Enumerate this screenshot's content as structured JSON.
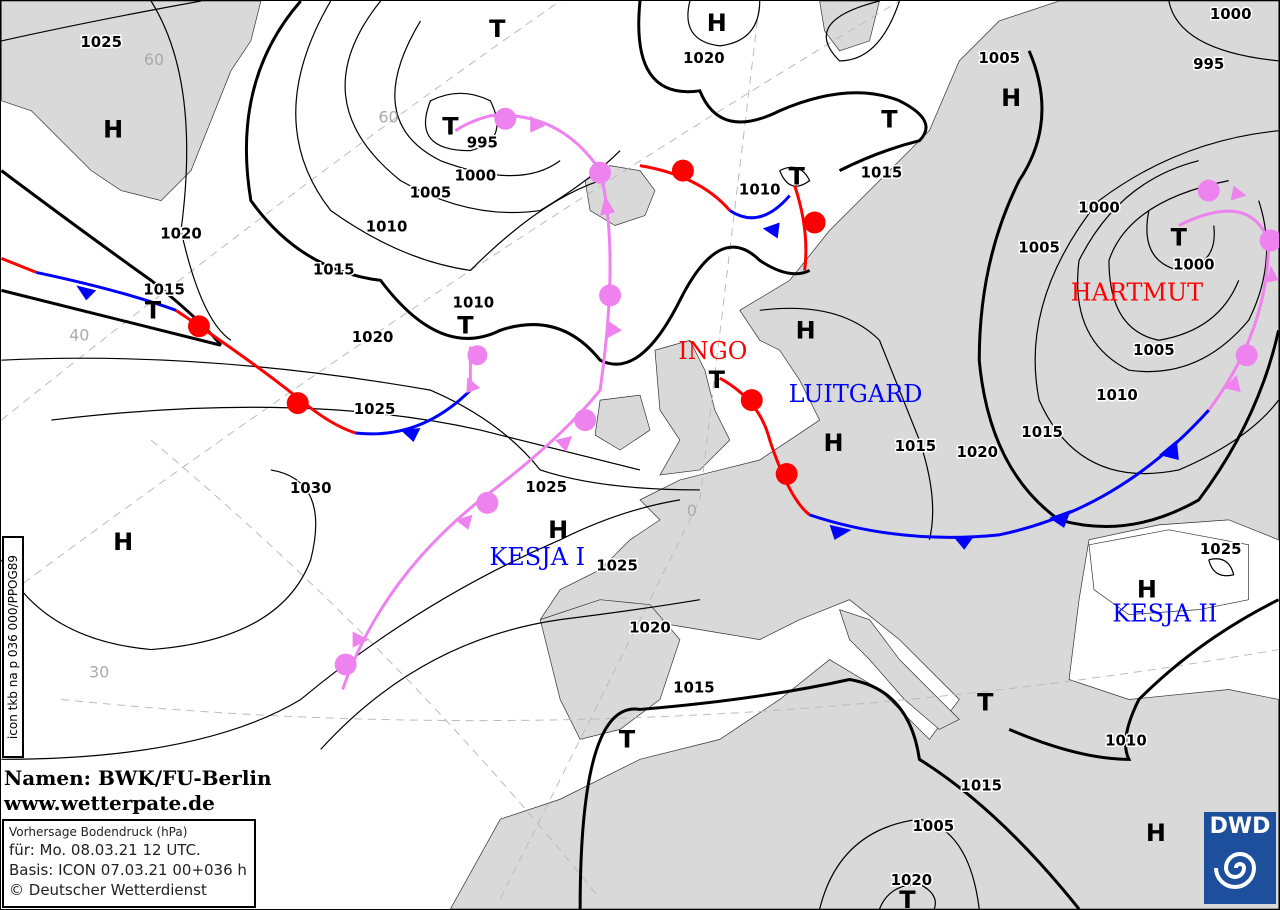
{
  "map": {
    "pressure_labels": [
      "1025",
      "1020",
      "1015",
      "1005",
      "1000",
      "995",
      "1010",
      "1010",
      "1015",
      "1020",
      "1025",
      "1030",
      "1025",
      "1025",
      "1020",
      "1015",
      "1020",
      "1010",
      "1015",
      "1005",
      "1000",
      "995",
      "1000",
      "1005",
      "1010",
      "1015",
      "1020",
      "1015",
      "1015",
      "1010",
      "1005",
      "1020",
      "1025",
      "1000",
      "1005"
    ],
    "centers": [
      "H",
      "T",
      "T",
      "H",
      "T",
      "T",
      "T",
      "T",
      "H",
      "H",
      "H",
      "T",
      "H",
      "H",
      "T",
      "T",
      "H",
      "H",
      "T",
      "T"
    ],
    "lat_labels": [
      "60",
      "60",
      "40",
      "30",
      "0"
    ],
    "system_names": [
      {
        "name": "INGO",
        "color": "#ff0000"
      },
      {
        "name": "LUITGARD",
        "color": "#0000ff"
      },
      {
        "name": "HARTMUT",
        "color": "#ff0000"
      },
      {
        "name": "KESJA I",
        "color": "#0000ff"
      },
      {
        "name": "KESJA II",
        "color": "#0000ff"
      }
    ],
    "front_colors": {
      "cold": "#0000ff",
      "warm": "#ff0000",
      "occluded": "#ee82ee"
    }
  },
  "credits": {
    "names": "Namen: BWK/FU-Berlin",
    "website": "www.wetterpate.de"
  },
  "info": {
    "title": "Vorhersage Bodendruck (hPa)",
    "valid": "für:  Mo. 08.03.21  12 UTC.",
    "base": "Basis: ICON  07.03.21 00+036 h",
    "copyright": "© Deutscher Wetterdienst"
  },
  "run_id": "icon tkb na p 036 000/PPOG89",
  "logo": {
    "text": "DWD"
  }
}
